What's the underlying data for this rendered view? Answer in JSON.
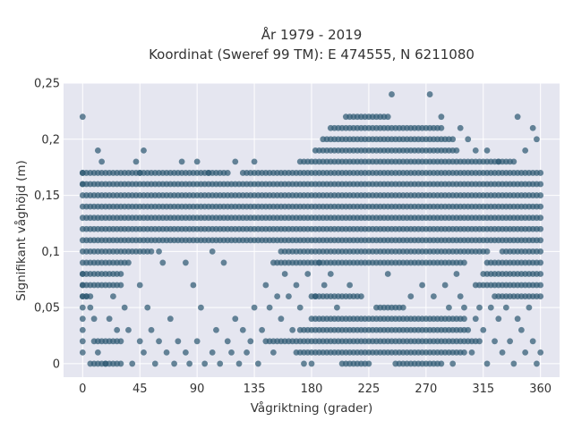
{
  "chart_data": {
    "type": "scatter",
    "title_lines": [
      "År 1979 - 2019",
      "Koordinat (Sweref 99 TM): E 474555, N 6211080"
    ],
    "xlabel": "Vågriktning (grader)",
    "ylabel": "Signifikant våghöjd (m)",
    "xlim": [
      -15,
      375
    ],
    "ylim": [
      -0.012,
      0.25
    ],
    "x_ticks": [
      0,
      45,
      90,
      135,
      180,
      225,
      270,
      315,
      360
    ],
    "x_tick_labels": [
      "0",
      "45",
      "90",
      "135",
      "180",
      "225",
      "270",
      "315",
      "360"
    ],
    "y_ticks": [
      0,
      0.05,
      0.1,
      0.15,
      0.2,
      0.25
    ],
    "y_tick_labels": [
      "0",
      "0,05",
      "0,1",
      "0,15",
      "0,2",
      "0,25"
    ],
    "grid": true,
    "legend": "none",
    "marker_color": "#2f5a73",
    "series": [
      {
        "x_step": 3,
        "y_step": 0.01,
        "band_ranges": [
          {
            "y": 0.0,
            "x_ranges": [
              [
                6,
                30
              ],
              [
                204,
                225
              ],
              [
                246,
                282
              ]
            ]
          },
          {
            "y": 0.01,
            "x_ranges": [
              [
                168,
                300
              ]
            ]
          },
          {
            "y": 0.02,
            "x_ranges": [
              [
                9,
                30
              ],
              [
                144,
                312
              ]
            ]
          },
          {
            "y": 0.03,
            "x_ranges": [
              [
                171,
                300
              ]
            ]
          },
          {
            "y": 0.04,
            "x_ranges": [
              [
                180,
                300
              ]
            ]
          },
          {
            "y": 0.05,
            "x_ranges": [
              [
                231,
                252
              ]
            ]
          },
          {
            "y": 0.06,
            "x_ranges": [
              [
                0,
                6
              ],
              [
                180,
                219
              ],
              [
                324,
                360
              ]
            ]
          },
          {
            "y": 0.07,
            "x_ranges": [
              [
                0,
                30
              ],
              [
                309,
                360
              ]
            ]
          },
          {
            "y": 0.08,
            "x_ranges": [
              [
                0,
                30
              ],
              [
                315,
                360
              ]
            ]
          },
          {
            "y": 0.09,
            "x_ranges": [
              [
                0,
                36
              ],
              [
                150,
                300
              ],
              [
                318,
                360
              ]
            ]
          },
          {
            "y": 0.1,
            "x_ranges": [
              [
                0,
                54
              ],
              [
                156,
                318
              ],
              [
                330,
                360
              ]
            ]
          },
          {
            "y": 0.11,
            "x_ranges": [
              [
                0,
                360
              ]
            ]
          },
          {
            "y": 0.12,
            "x_ranges": [
              [
                0,
                360
              ]
            ]
          },
          {
            "y": 0.13,
            "x_ranges": [
              [
                0,
                360
              ]
            ]
          },
          {
            "y": 0.14,
            "x_ranges": [
              [
                0,
                360
              ]
            ]
          },
          {
            "y": 0.15,
            "x_ranges": [
              [
                0,
                360
              ]
            ]
          },
          {
            "y": 0.16,
            "x_ranges": [
              [
                0,
                360
              ]
            ]
          },
          {
            "y": 0.17,
            "x_ranges": [
              [
                0,
                114
              ],
              [
                126,
                360
              ]
            ]
          },
          {
            "y": 0.18,
            "x_ranges": [
              [
                171,
                339
              ]
            ]
          },
          {
            "y": 0.19,
            "x_ranges": [
              [
                183,
                294
              ]
            ]
          },
          {
            "y": 0.2,
            "x_ranges": [
              [
                189,
                291
              ]
            ]
          },
          {
            "y": 0.21,
            "x_ranges": [
              [
                195,
                282
              ]
            ]
          },
          {
            "y": 0.22,
            "x_ranges": [
              [
                207,
                240
              ]
            ]
          }
        ],
        "scattered_points": [
          [
            0,
            0.22
          ],
          [
            0,
            0.17
          ],
          [
            0,
            0.16
          ],
          [
            0,
            0.08
          ],
          [
            0,
            0.07
          ],
          [
            0,
            0.06
          ],
          [
            0,
            0.05
          ],
          [
            0,
            0.04
          ],
          [
            0,
            0.03
          ],
          [
            0,
            0.02
          ],
          [
            0,
            0.01
          ],
          [
            3,
            0.06
          ],
          [
            6,
            0.05
          ],
          [
            9,
            0.04
          ],
          [
            12,
            0.19
          ],
          [
            12,
            0.01
          ],
          [
            15,
            0.18
          ],
          [
            18,
            0.0
          ],
          [
            21,
            0.04
          ],
          [
            24,
            0.06
          ],
          [
            27,
            0.03
          ],
          [
            33,
            0.05
          ],
          [
            36,
            0.03
          ],
          [
            39,
            0.0
          ],
          [
            42,
            0.18
          ],
          [
            45,
            0.17
          ],
          [
            45,
            0.07
          ],
          [
            45,
            0.02
          ],
          [
            48,
            0.19
          ],
          [
            48,
            0.01
          ],
          [
            51,
            0.05
          ],
          [
            54,
            0.03
          ],
          [
            57,
            0.0
          ],
          [
            60,
            0.1
          ],
          [
            60,
            0.02
          ],
          [
            63,
            0.09
          ],
          [
            66,
            0.01
          ],
          [
            69,
            0.04
          ],
          [
            72,
            0.0
          ],
          [
            75,
            0.02
          ],
          [
            78,
            0.18
          ],
          [
            81,
            0.09
          ],
          [
            81,
            0.01
          ],
          [
            84,
            0.0
          ],
          [
            87,
            0.07
          ],
          [
            90,
            0.18
          ],
          [
            90,
            0.02
          ],
          [
            93,
            0.05
          ],
          [
            96,
            0.0
          ],
          [
            99,
            0.17
          ],
          [
            102,
            0.1
          ],
          [
            102,
            0.01
          ],
          [
            105,
            0.03
          ],
          [
            108,
            0.0
          ],
          [
            111,
            0.09
          ],
          [
            114,
            0.02
          ],
          [
            117,
            0.01
          ],
          [
            120,
            0.18
          ],
          [
            120,
            0.04
          ],
          [
            123,
            0.0
          ],
          [
            126,
            0.03
          ],
          [
            129,
            0.01
          ],
          [
            132,
            0.02
          ],
          [
            135,
            0.18
          ],
          [
            135,
            0.05
          ],
          [
            138,
            0.0
          ],
          [
            141,
            0.03
          ],
          [
            144,
            0.07
          ],
          [
            147,
            0.05
          ],
          [
            150,
            0.01
          ],
          [
            153,
            0.06
          ],
          [
            156,
            0.04
          ],
          [
            159,
            0.08
          ],
          [
            162,
            0.06
          ],
          [
            165,
            0.03
          ],
          [
            168,
            0.07
          ],
          [
            171,
            0.05
          ],
          [
            174,
            0.0
          ],
          [
            177,
            0.08
          ],
          [
            180,
            0.0
          ],
          [
            183,
            0.06
          ],
          [
            186,
            0.09
          ],
          [
            190,
            0.07
          ],
          [
            195,
            0.08
          ],
          [
            200,
            0.05
          ],
          [
            210,
            0.07
          ],
          [
            240,
            0.08
          ],
          [
            243,
            0.24
          ],
          [
            258,
            0.06
          ],
          [
            267,
            0.07
          ],
          [
            273,
            0.24
          ],
          [
            276,
            0.06
          ],
          [
            282,
            0.22
          ],
          [
            285,
            0.07
          ],
          [
            288,
            0.05
          ],
          [
            291,
            0.0
          ],
          [
            294,
            0.08
          ],
          [
            297,
            0.21
          ],
          [
            297,
            0.06
          ],
          [
            300,
            0.05
          ],
          [
            303,
            0.2
          ],
          [
            303,
            0.03
          ],
          [
            306,
            0.01
          ],
          [
            309,
            0.19
          ],
          [
            309,
            0.04
          ],
          [
            312,
            0.05
          ],
          [
            315,
            0.03
          ],
          [
            318,
            0.19
          ],
          [
            318,
            0.0
          ],
          [
            321,
            0.05
          ],
          [
            324,
            0.02
          ],
          [
            327,
            0.18
          ],
          [
            327,
            0.04
          ],
          [
            330,
            0.01
          ],
          [
            333,
            0.05
          ],
          [
            336,
            0.02
          ],
          [
            339,
            0.0
          ],
          [
            342,
            0.22
          ],
          [
            342,
            0.04
          ],
          [
            345,
            0.03
          ],
          [
            348,
            0.19
          ],
          [
            348,
            0.01
          ],
          [
            351,
            0.05
          ],
          [
            354,
            0.21
          ],
          [
            354,
            0.02
          ],
          [
            357,
            0.2
          ],
          [
            357,
            0.0
          ],
          [
            360,
            0.01
          ]
        ]
      }
    ]
  }
}
